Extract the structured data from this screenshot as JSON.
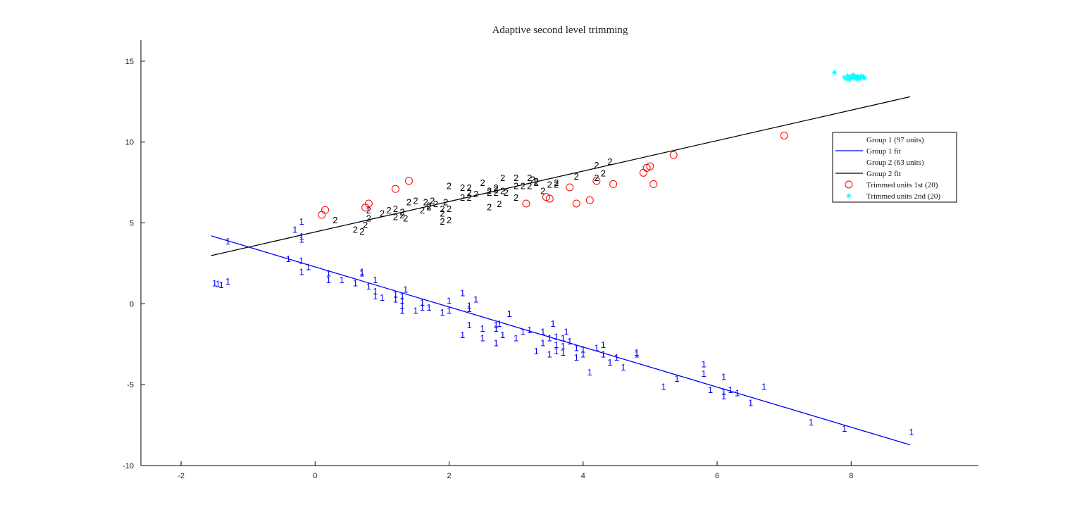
{
  "chart_data": {
    "type": "scatter",
    "title": "Adaptive second level trimming",
    "xlabel": "",
    "ylabel": "",
    "xlim": [
      -2.6,
      9.9
    ],
    "ylim": [
      -10,
      16.3
    ],
    "x_ticks": [
      -2,
      0,
      2,
      4,
      6,
      8
    ],
    "y_ticks": [
      -10,
      -5,
      0,
      5,
      10,
      15
    ],
    "grid": false,
    "legend_position": "right",
    "colors": {
      "group1": "#0000ff",
      "group2": "#000000",
      "trimmed1": "#ff0000",
      "trimmed2": "#00ffff",
      "axis": "#000000"
    },
    "legend": [
      {
        "label": "Group 1 (97 units)",
        "kind": "text",
        "color": "#0000ff"
      },
      {
        "label": "Group 1 fit",
        "kind": "line",
        "color": "#0000ff"
      },
      {
        "label": "Group 2 (63 units)",
        "kind": "text",
        "color": "#000000"
      },
      {
        "label": "Group 2 fit",
        "kind": "line",
        "color": "#000000"
      },
      {
        "label": "Trimmed units 1st (20)",
        "kind": "circle",
        "color": "#ff0000"
      },
      {
        "label": "Trimmed units 2nd (20)",
        "kind": "star",
        "color": "#00ffff"
      }
    ],
    "series": [
      {
        "name": "Group 1 (97 units)",
        "marker": "1",
        "color": "#0000ff",
        "points": [
          [
            -1.5,
            1.3
          ],
          [
            -1.4,
            1.2
          ],
          [
            -1.3,
            1.4
          ],
          [
            -1.3,
            3.9
          ],
          [
            -0.4,
            2.8
          ],
          [
            -0.2,
            5.1
          ],
          [
            -0.2,
            4.2
          ],
          [
            -0.3,
            4.6
          ],
          [
            -0.2,
            4.0
          ],
          [
            -0.2,
            2.7
          ],
          [
            -0.1,
            2.3
          ],
          [
            -0.2,
            2.0
          ],
          [
            0.2,
            1.9
          ],
          [
            0.2,
            1.5
          ],
          [
            0.4,
            1.5
          ],
          [
            0.6,
            1.3
          ],
          [
            0.7,
            2.0
          ],
          [
            0.7,
            1.9
          ],
          [
            0.8,
            1.1
          ],
          [
            0.9,
            1.5
          ],
          [
            0.9,
            0.8
          ],
          [
            0.9,
            0.5
          ],
          [
            1.0,
            0.4
          ],
          [
            1.2,
            0.3
          ],
          [
            1.3,
            0.5
          ],
          [
            1.3,
            0.2
          ],
          [
            1.3,
            -0.1
          ],
          [
            1.3,
            -0.4
          ],
          [
            1.35,
            0.9
          ],
          [
            1.5,
            -0.4
          ],
          [
            1.6,
            0.1
          ],
          [
            1.6,
            -0.2
          ],
          [
            1.7,
            -0.2
          ],
          [
            1.9,
            -0.5
          ],
          [
            2.0,
            -0.4
          ],
          [
            2.0,
            0.2
          ],
          [
            2.2,
            0.7
          ],
          [
            2.3,
            -0.3
          ],
          [
            2.3,
            -0.1
          ],
          [
            2.4,
            0.3
          ],
          [
            2.3,
            -1.3
          ],
          [
            2.5,
            -1.5
          ],
          [
            2.5,
            -2.1
          ],
          [
            2.7,
            -1.3
          ],
          [
            2.7,
            -1.5
          ],
          [
            2.7,
            -2.4
          ],
          [
            2.75,
            -1.2
          ],
          [
            2.8,
            -1.9
          ],
          [
            2.9,
            -0.6
          ],
          [
            3.0,
            -2.1
          ],
          [
            3.1,
            -1.7
          ],
          [
            3.2,
            -1.6
          ],
          [
            3.3,
            -2.9
          ],
          [
            3.4,
            -1.7
          ],
          [
            3.4,
            -2.4
          ],
          [
            3.5,
            -2.1
          ],
          [
            3.5,
            -3.1
          ],
          [
            3.55,
            -1.2
          ],
          [
            3.6,
            -2.0
          ],
          [
            3.6,
            -2.5
          ],
          [
            3.6,
            -2.9
          ],
          [
            3.7,
            -2.1
          ],
          [
            3.7,
            -3.0
          ],
          [
            3.75,
            -1.7
          ],
          [
            3.8,
            -2.3
          ],
          [
            3.9,
            -2.7
          ],
          [
            3.9,
            -3.3
          ],
          [
            4.0,
            -2.8
          ],
          [
            4.0,
            -3.1
          ],
          [
            4.1,
            -4.2
          ],
          [
            4.2,
            -2.7
          ],
          [
            4.3,
            -2.5
          ],
          [
            4.3,
            -3.1
          ],
          [
            4.4,
            -3.6
          ],
          [
            4.5,
            -3.3
          ],
          [
            4.6,
            -3.9
          ],
          [
            4.8,
            -3.0
          ],
          [
            4.8,
            -3.1
          ],
          [
            5.2,
            -5.1
          ],
          [
            5.4,
            -4.6
          ],
          [
            5.8,
            -3.7
          ],
          [
            5.8,
            -4.3
          ],
          [
            5.9,
            -5.3
          ],
          [
            6.1,
            -4.5
          ],
          [
            6.1,
            -5.4
          ],
          [
            6.1,
            -5.7
          ],
          [
            6.2,
            -5.3
          ],
          [
            6.3,
            -5.5
          ],
          [
            6.5,
            -6.1
          ],
          [
            6.7,
            -5.1
          ],
          [
            7.4,
            -7.3
          ],
          [
            7.9,
            -7.7
          ],
          [
            8.9,
            -7.9
          ],
          [
            3.7,
            -2.6
          ],
          [
            2.2,
            -1.9
          ],
          [
            1.2,
            0.6
          ],
          [
            -1.45,
            1.25
          ]
        ]
      },
      {
        "name": "Group 2 (63 units)",
        "marker": "2",
        "color": "#000000",
        "points": [
          [
            0.3,
            5.2
          ],
          [
            0.6,
            4.6
          ],
          [
            0.7,
            4.5
          ],
          [
            0.75,
            4.9
          ],
          [
            0.8,
            5.3
          ],
          [
            0.8,
            5.8
          ],
          [
            1.0,
            5.6
          ],
          [
            1.1,
            5.8
          ],
          [
            1.2,
            5.4
          ],
          [
            1.2,
            5.9
          ],
          [
            1.3,
            5.5
          ],
          [
            1.3,
            5.7
          ],
          [
            1.35,
            5.3
          ],
          [
            1.4,
            6.3
          ],
          [
            1.5,
            6.4
          ],
          [
            1.6,
            5.8
          ],
          [
            1.65,
            6.3
          ],
          [
            1.7,
            6.0
          ],
          [
            1.75,
            6.4
          ],
          [
            1.8,
            6.2
          ],
          [
            1.9,
            5.9
          ],
          [
            1.9,
            5.6
          ],
          [
            2.0,
            5.9
          ],
          [
            1.9,
            5.1
          ],
          [
            1.95,
            6.3
          ],
          [
            2.0,
            5.2
          ],
          [
            2.0,
            7.3
          ],
          [
            2.2,
            7.2
          ],
          [
            2.2,
            6.6
          ],
          [
            2.3,
            6.9
          ],
          [
            2.3,
            7.2
          ],
          [
            2.3,
            6.6
          ],
          [
            2.4,
            6.8
          ],
          [
            2.5,
            7.5
          ],
          [
            2.6,
            6.9
          ],
          [
            2.6,
            7.0
          ],
          [
            2.7,
            6.9
          ],
          [
            2.7,
            7.1
          ],
          [
            2.7,
            7.2
          ],
          [
            2.6,
            6.0
          ],
          [
            2.75,
            6.2
          ],
          [
            2.8,
            7.8
          ],
          [
            2.85,
            6.9
          ],
          [
            3.0,
            7.8
          ],
          [
            3.0,
            7.3
          ],
          [
            3.0,
            6.6
          ],
          [
            3.2,
            7.8
          ],
          [
            3.2,
            7.3
          ],
          [
            3.3,
            7.5
          ],
          [
            3.3,
            7.6
          ],
          [
            3.4,
            7.0
          ],
          [
            3.5,
            7.4
          ],
          [
            3.6,
            7.4
          ],
          [
            3.9,
            7.9
          ],
          [
            4.2,
            8.6
          ],
          [
            4.2,
            7.8
          ],
          [
            4.3,
            8.1
          ],
          [
            4.4,
            8.8
          ],
          [
            3.25,
            7.7
          ],
          [
            3.6,
            7.5
          ],
          [
            3.1,
            7.3
          ],
          [
            2.8,
            7.0
          ],
          [
            1.7,
            6.1
          ]
        ]
      },
      {
        "name": "Trimmed units 1st (20)",
        "marker": "circle",
        "color": "#ff0000",
        "points": [
          [
            0.1,
            5.5
          ],
          [
            0.15,
            5.8
          ],
          [
            0.75,
            5.95
          ],
          [
            0.8,
            6.2
          ],
          [
            1.2,
            7.1
          ],
          [
            1.4,
            7.6
          ],
          [
            3.15,
            6.2
          ],
          [
            3.45,
            6.6
          ],
          [
            3.5,
            6.5
          ],
          [
            3.8,
            7.2
          ],
          [
            3.9,
            6.2
          ],
          [
            4.1,
            6.4
          ],
          [
            4.2,
            7.6
          ],
          [
            4.45,
            7.4
          ],
          [
            4.9,
            8.1
          ],
          [
            4.95,
            8.4
          ],
          [
            5.0,
            8.5
          ],
          [
            5.05,
            7.4
          ],
          [
            5.35,
            9.2
          ],
          [
            7.0,
            10.4
          ]
        ]
      },
      {
        "name": "Trimmed units 2nd (20)",
        "marker": "star",
        "color": "#00ffff",
        "points": [
          [
            7.75,
            14.3
          ],
          [
            7.9,
            14.0
          ],
          [
            7.93,
            13.9
          ],
          [
            7.95,
            14.1
          ],
          [
            7.98,
            14.0
          ],
          [
            8.0,
            14.05
          ],
          [
            8.02,
            13.95
          ],
          [
            8.04,
            14.1
          ],
          [
            8.06,
            14.0
          ],
          [
            8.08,
            13.9
          ],
          [
            8.1,
            14.05
          ],
          [
            8.12,
            14.0
          ],
          [
            8.14,
            13.95
          ],
          [
            8.16,
            14.1
          ],
          [
            8.18,
            14.0
          ],
          [
            8.2,
            13.95
          ],
          [
            7.97,
            13.85
          ],
          [
            8.03,
            14.15
          ],
          [
            8.09,
            14.05
          ],
          [
            8.11,
            13.9
          ]
        ]
      }
    ],
    "fit_lines": [
      {
        "name": "Group 1 fit",
        "color": "#0000ff",
        "x": [
          -1.55,
          8.88
        ],
        "y": [
          4.2,
          -8.72
        ]
      },
      {
        "name": "Group 2 fit",
        "color": "#000000",
        "x": [
          -1.55,
          8.88
        ],
        "y": [
          2.98,
          12.8
        ]
      }
    ]
  }
}
